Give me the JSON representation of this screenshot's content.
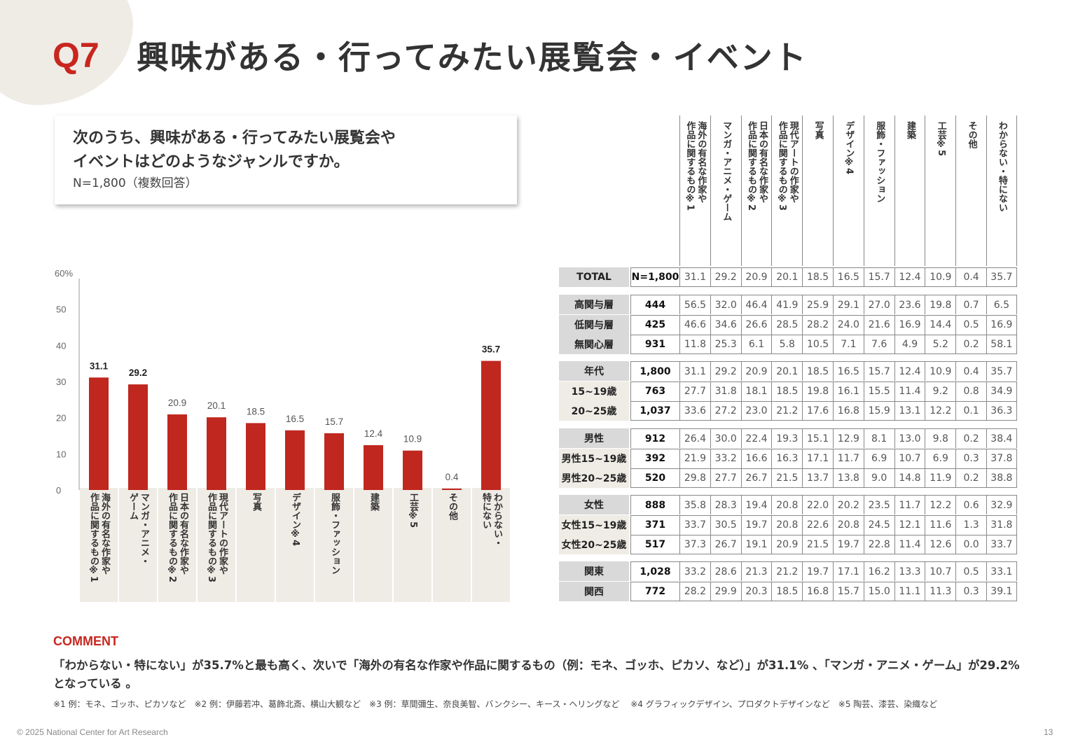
{
  "header": {
    "qnum": "Q7",
    "title": "興味がある・行ってみたい展覧会・イベント"
  },
  "question": {
    "text": "次のうち、興味がある・行ってみたい展覧会や\nイベントはどのようなジャンルですか。",
    "n": "N=1,800（複数回答）"
  },
  "chart_data": {
    "type": "bar",
    "categories": [
      "海外の有名な作家や\n作品に関するもの※1",
      "マンガ・アニメ・\nゲーム",
      "日本の有名な作家や\n作品に関するもの※2",
      "現代アートの作家や\n作品に関するもの※3",
      "写真",
      "デザイン※4",
      "服飾・ファッション",
      "建築",
      "工芸※5",
      "その他",
      "わからない・\n特にない"
    ],
    "values": [
      31.1,
      29.2,
      20.9,
      20.1,
      18.5,
      16.5,
      15.7,
      12.4,
      10.9,
      0.4,
      35.7
    ],
    "value_labels": [
      "31.1",
      "29.2",
      "20.9",
      "20.1",
      "18.5",
      "16.5",
      "15.7",
      "12.4",
      "10.9",
      "0.4",
      "35.7"
    ],
    "bold_labels": [
      true,
      true,
      false,
      false,
      false,
      false,
      false,
      false,
      false,
      false,
      true
    ],
    "ylim": [
      0,
      60
    ],
    "yticks": [
      "0",
      "10",
      "20",
      "30",
      "40",
      "50",
      "60%"
    ],
    "bar_color": "#c0271f",
    "xlabel": "",
    "ylabel": ""
  },
  "table": {
    "columns": [
      "海外の有名な作家や\n作品に関するもの※1",
      "マンガ・アニメ・ゲーム",
      "日本の有名な作家や\n作品に関するもの※2",
      "現代アートの作家や\n作品に関するもの※3",
      "写真",
      "デザイン※4",
      "服飾・ファッション",
      "建築",
      "工芸※5",
      "その他",
      "わからない・特にない"
    ],
    "groups": [
      [
        {
          "label": "TOTAL",
          "n": "N=1,800",
          "values": [
            "31.1",
            "29.2",
            "20.9",
            "20.1",
            "18.5",
            "16.5",
            "15.7",
            "12.4",
            "10.9",
            "0.4",
            "35.7"
          ]
        }
      ],
      [
        {
          "label": "高関与層",
          "n": "444",
          "values": [
            "56.5",
            "32.0",
            "46.4",
            "41.9",
            "25.9",
            "29.1",
            "27.0",
            "23.6",
            "19.8",
            "0.7",
            "6.5"
          ]
        },
        {
          "label": "低関与層",
          "n": "425",
          "values": [
            "46.6",
            "34.6",
            "26.6",
            "28.5",
            "28.2",
            "24.0",
            "21.6",
            "16.9",
            "14.4",
            "0.5",
            "16.9"
          ]
        },
        {
          "label": "無関心層",
          "n": "931",
          "values": [
            "11.8",
            "25.3",
            "6.1",
            "5.8",
            "10.5",
            "7.1",
            "7.6",
            "4.9",
            "5.2",
            "0.2",
            "58.1"
          ]
        }
      ],
      [
        {
          "label": "年代",
          "n": "1,800",
          "values": [
            "31.1",
            "29.2",
            "20.9",
            "20.1",
            "18.5",
            "16.5",
            "15.7",
            "12.4",
            "10.9",
            "0.4",
            "35.7"
          ]
        },
        {
          "label": "15~19歳",
          "sub": true,
          "n": "763",
          "values": [
            "27.7",
            "31.8",
            "18.1",
            "18.5",
            "19.8",
            "16.1",
            "15.5",
            "11.4",
            "9.2",
            "0.8",
            "34.9"
          ]
        },
        {
          "label": "20~25歳",
          "sub": true,
          "n": "1,037",
          "values": [
            "33.6",
            "27.2",
            "23.0",
            "21.2",
            "17.6",
            "16.8",
            "15.9",
            "13.1",
            "12.2",
            "0.1",
            "36.3"
          ]
        }
      ],
      [
        {
          "label": "男性",
          "n": "912",
          "values": [
            "26.4",
            "30.0",
            "22.4",
            "19.3",
            "15.1",
            "12.9",
            "8.1",
            "13.0",
            "9.8",
            "0.2",
            "38.4"
          ]
        },
        {
          "label": "男性15~19歳",
          "sub": true,
          "n": "392",
          "values": [
            "21.9",
            "33.2",
            "16.6",
            "16.3",
            "17.1",
            "11.7",
            "6.9",
            "10.7",
            "6.9",
            "0.3",
            "37.8"
          ]
        },
        {
          "label": "男性20~25歳",
          "sub": true,
          "n": "520",
          "values": [
            "29.8",
            "27.7",
            "26.7",
            "21.5",
            "13.7",
            "13.8",
            "9.0",
            "14.8",
            "11.9",
            "0.2",
            "38.8"
          ]
        }
      ],
      [
        {
          "label": "女性",
          "n": "888",
          "values": [
            "35.8",
            "28.3",
            "19.4",
            "20.8",
            "22.0",
            "20.2",
            "23.5",
            "11.7",
            "12.2",
            "0.6",
            "32.9"
          ]
        },
        {
          "label": "女性15~19歳",
          "sub": true,
          "n": "371",
          "values": [
            "33.7",
            "30.5",
            "19.7",
            "20.8",
            "22.6",
            "20.8",
            "24.5",
            "12.1",
            "11.6",
            "1.3",
            "31.8"
          ]
        },
        {
          "label": "女性20~25歳",
          "sub": true,
          "n": "517",
          "values": [
            "37.3",
            "26.7",
            "19.1",
            "20.9",
            "21.5",
            "19.7",
            "22.8",
            "11.4",
            "12.6",
            "0.0",
            "33.7"
          ]
        }
      ],
      [
        {
          "label": "関東",
          "n": "1,028",
          "values": [
            "33.2",
            "28.6",
            "21.3",
            "21.2",
            "19.7",
            "17.1",
            "16.2",
            "13.3",
            "10.7",
            "0.5",
            "33.1"
          ]
        },
        {
          "label": "関西",
          "n": "772",
          "values": [
            "28.2",
            "29.9",
            "20.3",
            "18.5",
            "16.8",
            "15.7",
            "15.0",
            "11.1",
            "11.3",
            "0.3",
            "39.1"
          ]
        }
      ]
    ]
  },
  "comment": {
    "heading": "COMMENT",
    "text": "「わからない・特にない」が35.7%と最も高く、次いで「海外の有名な作家や作品に関するもの（例：モネ、ゴッホ、ピカソ、など）」が31.1% 、「マンガ・アニメ・ゲーム」が29.2%となっている 。"
  },
  "notes": "※1 例：モネ、ゴッホ、ピカソなど　※2 例：伊藤若冲、葛飾北斎、横山大観など　※3 例：草間彌生、奈良美智、バンクシー、キース・ヘリングなど　 ※4 グラフィックデザイン、プロダクトデザインなど　※5 陶芸、漆芸、染織など",
  "footer": {
    "copyright": "© 2025 National Center for Art Research",
    "page": "13"
  }
}
